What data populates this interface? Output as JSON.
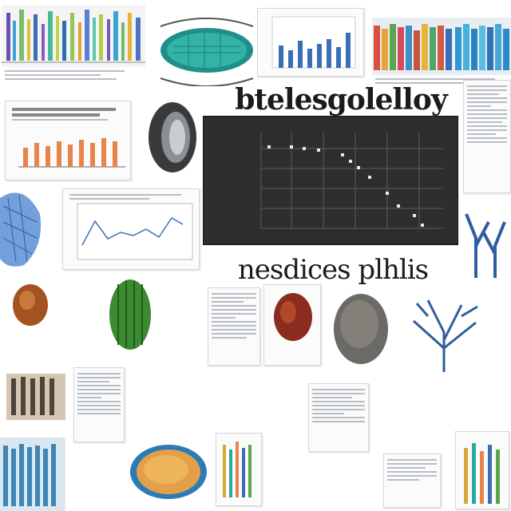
{
  "headline": "btelesgolelloy",
  "subheadline": "nesdices plhlis",
  "icons": [
    "striped-bars-art",
    "teal-cell-art",
    "bar-chart-thumbnail",
    "colored-stripes-art",
    "orange-bar-chart",
    "tire-illustration",
    "scatter-plot",
    "line-chart-thumbnail",
    "blue-coral-art",
    "seed-illustration",
    "cactus-illustration",
    "red-seed-illustration",
    "gray-stone-illustration",
    "branching-coral-art",
    "orange-cell-illustration",
    "layered-rock-art"
  ],
  "colors": {
    "plot_bg": "#2e2e30",
    "accent_orange": "#e8834a",
    "accent_blue": "#3a6fb7",
    "accent_teal": "#2aa9a0"
  }
}
